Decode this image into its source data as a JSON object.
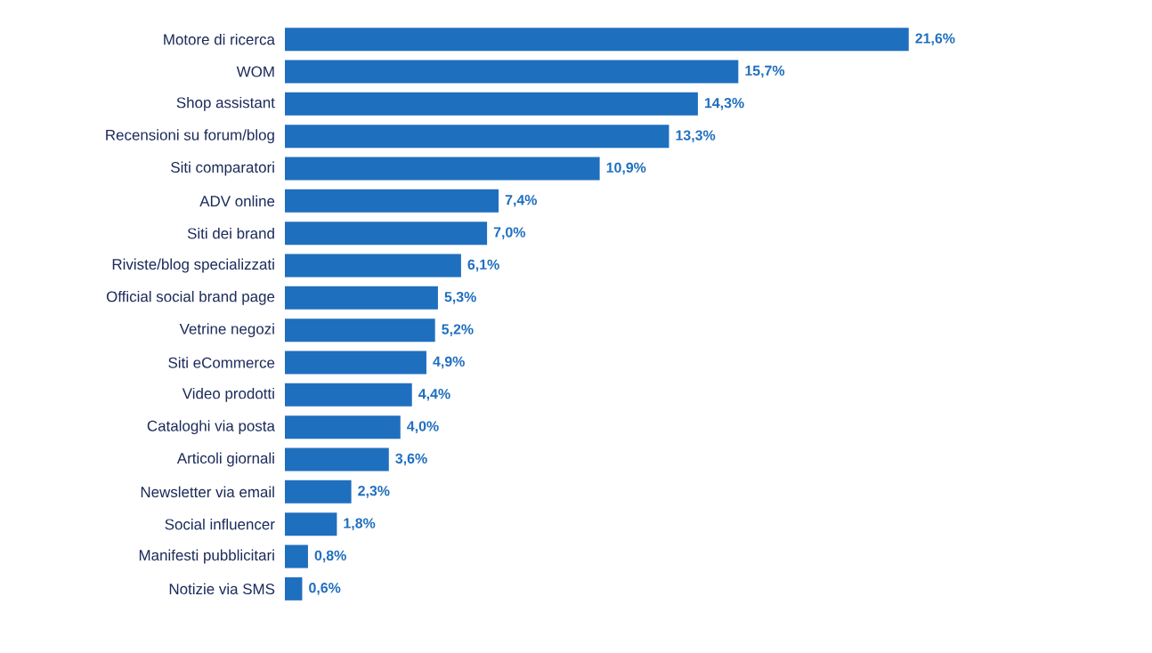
{
  "chart_data": {
    "type": "bar",
    "orientation": "horizontal",
    "color": "#1f6fbf",
    "categories": [
      "Motore di ricerca",
      "WOM",
      "Shop assistant",
      "Recensioni su forum/blog",
      "Siti comparatori",
      "ADV online",
      "Siti dei brand",
      "Riviste/blog specializzati",
      "Official social brand page",
      "Vetrine negozi",
      "Siti eCommerce",
      "Video prodotti",
      "Cataloghi via posta",
      "Articoli giornali",
      "Newsletter via email",
      "Social influencer",
      "Manifesti pubblicitari",
      "Notizie via SMS"
    ],
    "values": [
      21.6,
      15.7,
      14.3,
      13.3,
      10.9,
      7.4,
      7.0,
      6.1,
      5.3,
      5.2,
      4.9,
      4.4,
      4.0,
      3.6,
      2.3,
      1.8,
      0.8,
      0.6
    ],
    "value_labels": [
      "21,6%",
      "15,7%",
      "14,3%",
      "13,3%",
      "10,9%",
      "7,4%",
      "7,0%",
      "6,1%",
      "5,3%",
      "5,2%",
      "4,9%",
      "4,4%",
      "4,0%",
      "3,6%",
      "2,3%",
      "1,8%",
      "0,8%",
      "0,6%"
    ]
  }
}
